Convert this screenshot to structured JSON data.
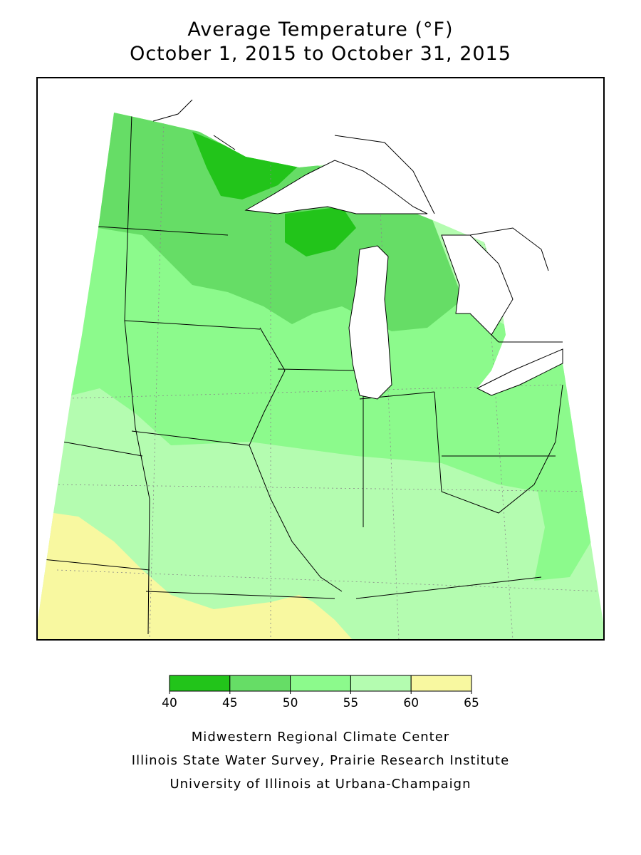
{
  "title": {
    "line1": "Average Temperature (°F)",
    "line2": "October 1, 2015 to October 31, 2015"
  },
  "legend": {
    "bins": [
      40,
      45,
      50,
      55,
      60,
      65
    ],
    "colors": [
      "#22c41a",
      "#66dd66",
      "#8cfa8c",
      "#b4fcb0",
      "#f8f8a0"
    ]
  },
  "credits": [
    "Midwestern Regional Climate Center",
    "Illinois State Water Survey, Prairie Research Institute",
    "University of Illinois at Urbana-Champaign"
  ]
}
